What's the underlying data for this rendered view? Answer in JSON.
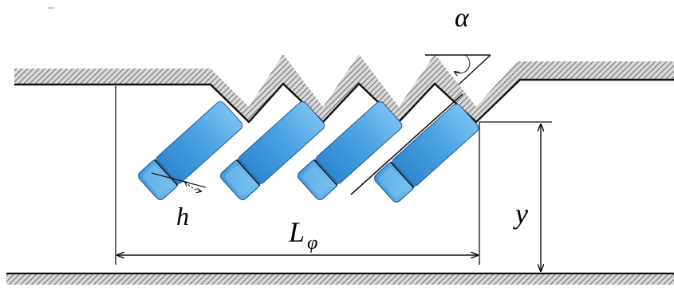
{
  "labels": {
    "alpha": "α",
    "h": "h",
    "L_main": "L",
    "L_sub": "φ",
    "y": "y"
  },
  "cars": {
    "count": 4,
    "angle_label": "α"
  },
  "colors": {
    "car_body": "#3a8fd6",
    "car_body_light": "#69b4ee",
    "car_cab": "#5fb0ee",
    "outline": "#111111",
    "hatch": "#6a6a6a"
  }
}
